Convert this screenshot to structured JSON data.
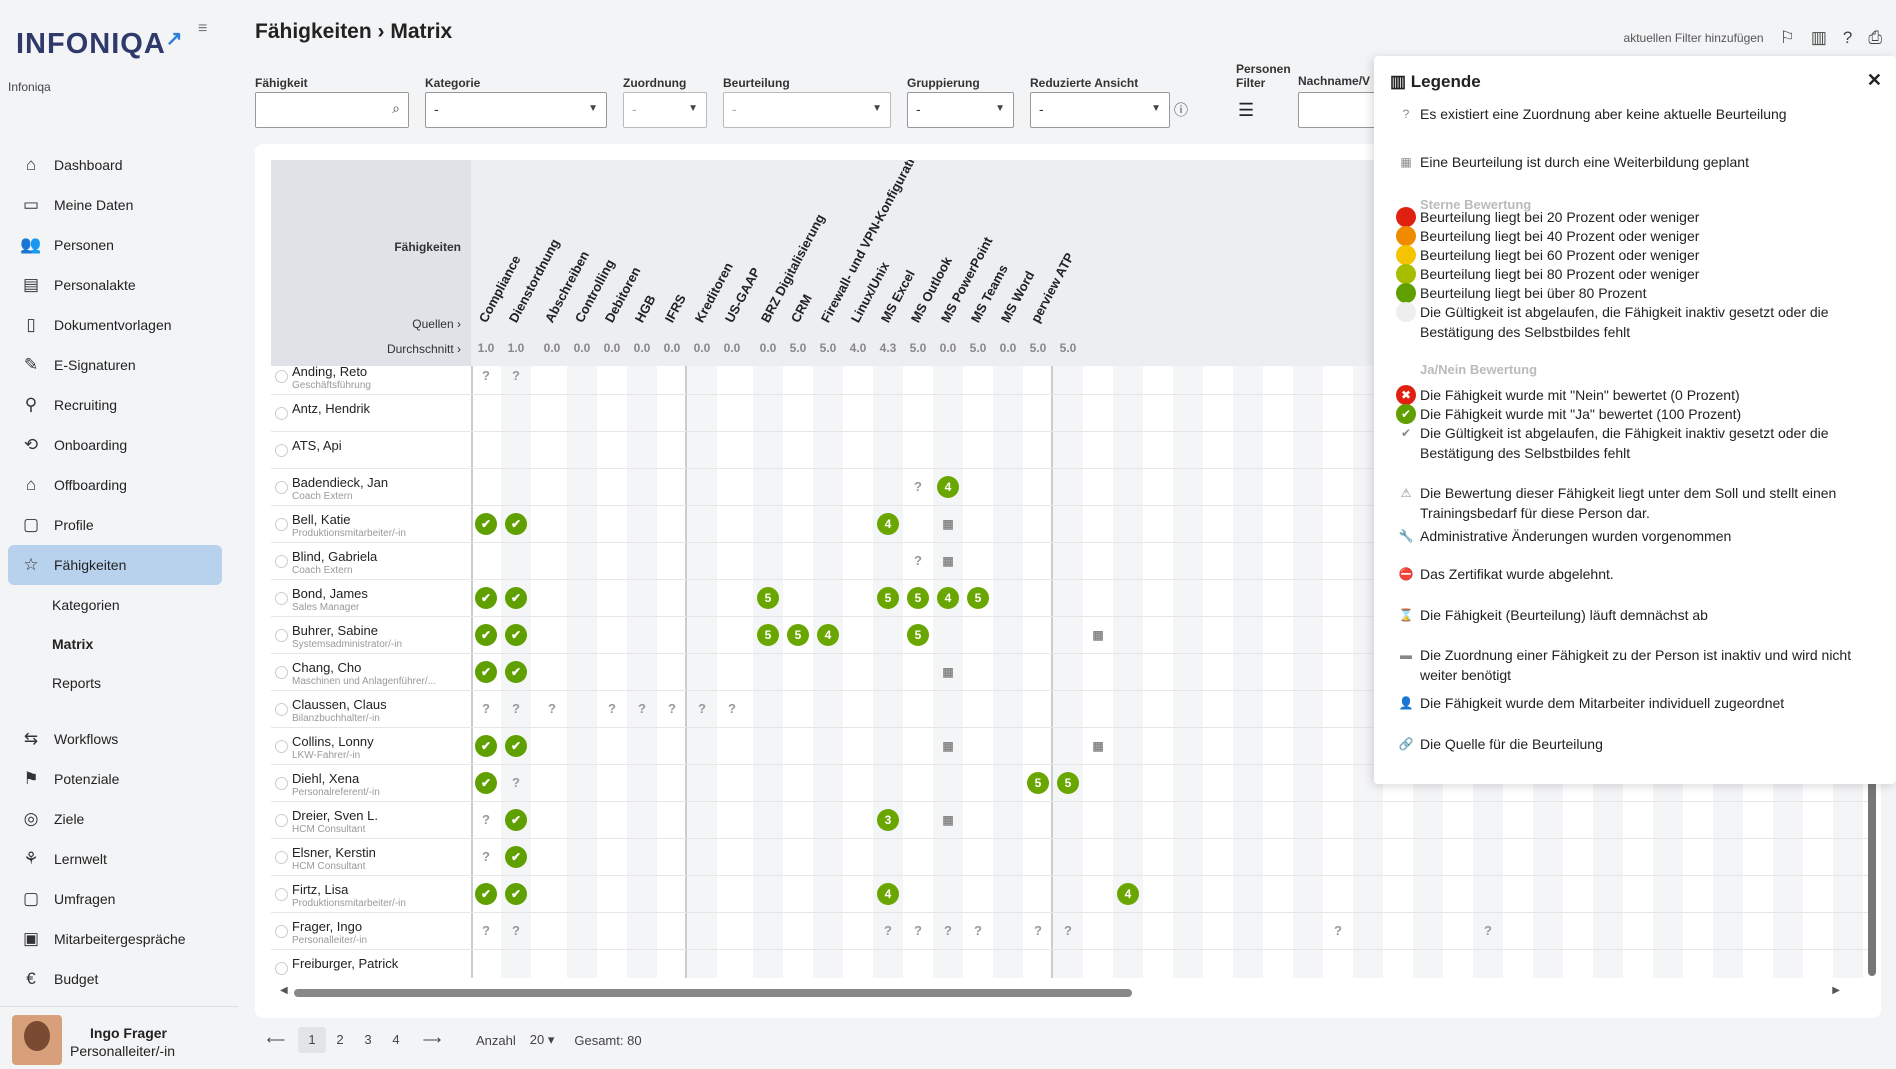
{
  "app": {
    "logo": "INFONIQA",
    "org": "Infoniqa"
  },
  "nav": [
    "Dashboard",
    "Meine Daten",
    "Personen",
    "Personalakte",
    "Dokumentvorlagen",
    "E-Signaturen",
    "Recruiting",
    "Onboarding",
    "Offboarding",
    "Profile",
    "Fähigkeiten"
  ],
  "subnav": [
    "Kategorien",
    "Matrix",
    "Reports"
  ],
  "nav2": [
    "Workflows",
    "Potenziale",
    "Ziele",
    "Lernwelt",
    "Umfragen",
    "Mitarbeitergespräche",
    "Budget"
  ],
  "user": {
    "name": "Ingo Frager",
    "role": "Personalleiter/-in"
  },
  "page": {
    "title": "Fähigkeiten › Matrix",
    "add_filter": "aktuellen Filter hinzufügen"
  },
  "filters": {
    "skill_label": "Fähigkeit",
    "category_label": "Kategorie",
    "category_value": "-",
    "assign_label": "Zuordnung",
    "assign_value": "-",
    "rating_label": "Beurteilung",
    "rating_value": "-",
    "group_label": "Gruppierung",
    "group_value": "-",
    "reduced_label": "Reduzierte Ansicht",
    "reduced_value": "-",
    "persons_label": "Personen Filter",
    "name_label": "Nachname/V"
  },
  "matrix": {
    "skills_label": "Fähigkeiten",
    "sources_label": "Quellen ›",
    "avg_label": "Durchschnitt ›",
    "columns": [
      {
        "name": "Compliance",
        "avg": "1.0"
      },
      {
        "name": "Dienstordnung",
        "avg": "1.0"
      },
      {
        "name": "Abschreiben",
        "avg": "0.0"
      },
      {
        "name": "Controlling",
        "avg": "0.0"
      },
      {
        "name": "Debitoren",
        "avg": "0.0"
      },
      {
        "name": "HGB",
        "avg": "0.0"
      },
      {
        "name": "IFRS",
        "avg": "0.0"
      },
      {
        "name": "Kreditoren",
        "avg": "0.0"
      },
      {
        "name": "US-GAAP",
        "avg": "0.0"
      },
      {
        "name": "BRZ Digitalisierung",
        "avg": "0.0"
      },
      {
        "name": "CRM",
        "avg": "5.0"
      },
      {
        "name": "Firewall- und VPN-Konfigurati...",
        "avg": "5.0"
      },
      {
        "name": "Linux/Unix",
        "avg": "4.0"
      },
      {
        "name": "MS Excel",
        "avg": "4.3"
      },
      {
        "name": "MS Outlook",
        "avg": "5.0"
      },
      {
        "name": "MS PowerPoint",
        "avg": "0.0"
      },
      {
        "name": "MS Teams",
        "avg": "5.0"
      },
      {
        "name": "MS Word",
        "avg": "0.0"
      },
      {
        "name": "perview ATP",
        "avg": "5.0"
      },
      {
        "name": "",
        "avg": "5.0"
      }
    ],
    "rows": [
      {
        "name": "Anding, Reto",
        "role": "Geschäftsführung"
      },
      {
        "name": "Antz, Hendrik",
        "role": ""
      },
      {
        "name": "ATS, Api",
        "role": ""
      },
      {
        "name": "Badendieck, Jan",
        "role": "Coach Extern"
      },
      {
        "name": "Bell, Katie",
        "role": "Produktionsmitarbeiter/-in"
      },
      {
        "name": "Blind, Gabriela",
        "role": "Coach Extern"
      },
      {
        "name": "Bond, James",
        "role": "Sales Manager"
      },
      {
        "name": "Buhrer, Sabine",
        "role": "Systemsadministrator/-in"
      },
      {
        "name": "Chang, Cho",
        "role": "Maschinen und Anlagenführer/..."
      },
      {
        "name": "Claussen, Claus",
        "role": "Bilanzbuchhalter/-in"
      },
      {
        "name": "Collins, Lonny",
        "role": "LKW-Fahrer/-in"
      },
      {
        "name": "Diehl, Xena",
        "role": "Personalreferent/-in"
      },
      {
        "name": "Dreier, Sven L.",
        "role": "HCM Consultant"
      },
      {
        "name": "Elsner, Kerstin",
        "role": "HCM Consultant"
      },
      {
        "name": "Firtz, Lisa",
        "role": "Produktionsmitarbeiter/-in"
      },
      {
        "name": "Frager, Ingo",
        "role": "Personalleiter/-in"
      },
      {
        "name": "Freiburger, Patrick",
        "role": ""
      }
    ],
    "cells": [
      [
        0,
        0,
        "q",
        ""
      ],
      [
        0,
        1,
        "q",
        ""
      ],
      [
        3,
        14,
        "q",
        ""
      ],
      [
        3,
        15,
        "num",
        "4"
      ],
      [
        4,
        0,
        "ok",
        ""
      ],
      [
        4,
        1,
        "ok",
        ""
      ],
      [
        4,
        13,
        "num",
        "4"
      ],
      [
        4,
        15,
        "cal",
        ""
      ],
      [
        5,
        14,
        "q",
        ""
      ],
      [
        5,
        15,
        "cal",
        ""
      ],
      [
        6,
        0,
        "ok",
        ""
      ],
      [
        6,
        1,
        "ok",
        ""
      ],
      [
        6,
        9,
        "num",
        "5"
      ],
      [
        6,
        13,
        "num",
        "5"
      ],
      [
        6,
        14,
        "num",
        "5"
      ],
      [
        6,
        15,
        "num",
        "4"
      ],
      [
        6,
        16,
        "num",
        "5"
      ],
      [
        7,
        0,
        "ok",
        ""
      ],
      [
        7,
        1,
        "ok",
        ""
      ],
      [
        7,
        9,
        "num",
        "5"
      ],
      [
        7,
        10,
        "num",
        "5"
      ],
      [
        7,
        11,
        "num",
        "4"
      ],
      [
        7,
        14,
        "num",
        "5"
      ],
      [
        7,
        20,
        "cal",
        ""
      ],
      [
        8,
        0,
        "ok",
        ""
      ],
      [
        8,
        1,
        "ok",
        ""
      ],
      [
        8,
        15,
        "cal",
        ""
      ],
      [
        9,
        0,
        "q",
        ""
      ],
      [
        9,
        1,
        "q",
        ""
      ],
      [
        9,
        2,
        "q",
        ""
      ],
      [
        9,
        4,
        "q",
        ""
      ],
      [
        9,
        5,
        "q",
        ""
      ],
      [
        9,
        6,
        "q",
        ""
      ],
      [
        9,
        7,
        "q",
        ""
      ],
      [
        9,
        8,
        "q",
        ""
      ],
      [
        10,
        0,
        "ok",
        ""
      ],
      [
        10,
        1,
        "ok",
        ""
      ],
      [
        10,
        15,
        "cal",
        ""
      ],
      [
        10,
        20,
        "cal",
        ""
      ],
      [
        11,
        0,
        "ok",
        ""
      ],
      [
        11,
        1,
        "q",
        ""
      ],
      [
        11,
        18,
        "num",
        "5"
      ],
      [
        11,
        19,
        "num",
        "5"
      ],
      [
        12,
        0,
        "q",
        ""
      ],
      [
        12,
        1,
        "ok",
        ""
      ],
      [
        12,
        13,
        "num",
        "3"
      ],
      [
        12,
        15,
        "cal",
        ""
      ],
      [
        13,
        0,
        "q",
        ""
      ],
      [
        13,
        1,
        "ok",
        ""
      ],
      [
        14,
        0,
        "ok",
        ""
      ],
      [
        14,
        1,
        "ok",
        ""
      ],
      [
        14,
        13,
        "num",
        "4"
      ],
      [
        14,
        21,
        "num",
        "4"
      ],
      [
        15,
        0,
        "q",
        ""
      ],
      [
        15,
        1,
        "q",
        ""
      ],
      [
        15,
        13,
        "q",
        ""
      ],
      [
        15,
        14,
        "q",
        ""
      ],
      [
        15,
        15,
        "q",
        ""
      ],
      [
        15,
        16,
        "q",
        ""
      ],
      [
        15,
        18,
        "q",
        ""
      ],
      [
        15,
        19,
        "q",
        ""
      ],
      [
        15,
        28,
        "q",
        ""
      ],
      [
        15,
        33,
        "q",
        ""
      ]
    ]
  },
  "legend": {
    "title": "Legende",
    "items": [
      "Es existiert eine Zuordnung aber keine aktuelle Beurteilung",
      "Eine Beurteilung ist durch eine Weiterbildung geplant",
      "Sterne Bewertung",
      "Beurteilung liegt bei 20 Prozent oder weniger",
      "Beurteilung liegt bei 40 Prozent oder weniger",
      "Beurteilung liegt bei 60 Prozent oder weniger",
      "Beurteilung liegt bei 80 Prozent oder weniger",
      "Beurteilung liegt bei über 80 Prozent",
      "Die Gültigkeit ist abgelaufen, die Fähigkeit inaktiv gesetzt oder die Bestätigung des Selbstbildes fehlt",
      "Ja/Nein Bewertung",
      "Die Fähigkeit wurde mit \"Nein\" bewertet (0 Prozent)",
      "Die Fähigkeit wurde mit \"Ja\" bewertet (100 Prozent)",
      "Die Gültigkeit ist abgelaufen, die Fähigkeit inaktiv gesetzt oder die Bestätigung des Selbstbildes fehlt",
      "Die Bewertung dieser Fähigkeit liegt unter dem Soll und stellt einen Trainingsbedarf für diese Person dar.",
      "Administrative Änderungen wurden vorgenommen",
      "Das Zertifikat wurde abgelehnt.",
      "Die Fähigkeit (Beurteilung) läuft demnächst ab",
      "Die Zuordnung einer Fähigkeit zu der Person ist inaktiv und wird nicht weiter benötigt",
      "Die Fähigkeit wurde dem Mitarbeiter individuell zugeordnet",
      "Die Quelle für die Beurteilung"
    ],
    "colors": [
      "#e02010",
      "#f08a00",
      "#f4c400",
      "#a8bc00",
      "#5fa000"
    ]
  },
  "pager": {
    "pages": [
      "1",
      "2",
      "3",
      "4"
    ],
    "count_label": "Anzahl",
    "count": "20",
    "total": "Gesamt: 80"
  }
}
